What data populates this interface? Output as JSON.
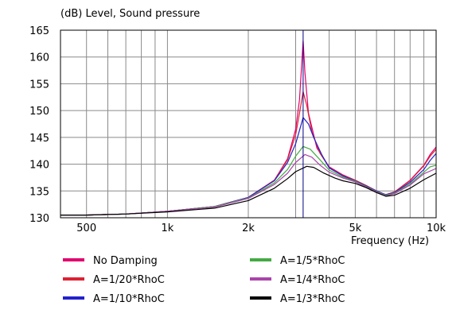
{
  "chart_data": {
    "type": "line",
    "title": "(dB)  Level, Sound pressure",
    "xlabel": "Frequency  (Hz)",
    "ylabel": "(dB)",
    "x_scale": "log",
    "xlim": [
      400,
      10000
    ],
    "ylim": [
      130,
      165
    ],
    "grid": true,
    "legend_placement": "bottom",
    "x_ticks": [
      {
        "value": 500,
        "label": "500"
      },
      {
        "value": 1000,
        "label": "1k"
      },
      {
        "value": 2000,
        "label": "2k"
      },
      {
        "value": 5000,
        "label": "5k"
      },
      {
        "value": 10000,
        "label": "10k"
      }
    ],
    "y_ticks": [
      {
        "value": 130,
        "label": "130"
      },
      {
        "value": 135,
        "label": "135"
      },
      {
        "value": 140,
        "label": "140"
      },
      {
        "value": 145,
        "label": "145"
      },
      {
        "value": 150,
        "label": "150"
      },
      {
        "value": 155,
        "label": "155"
      },
      {
        "value": 160,
        "label": "160"
      },
      {
        "value": 165,
        "label": "165"
      }
    ],
    "marker_line": {
      "x": 3200,
      "color": "#000080"
    },
    "series": [
      {
        "name": "No Damping",
        "color": "#e0006e",
        "points": [
          [
            400,
            130.5
          ],
          [
            500,
            130.5
          ],
          [
            700,
            130.7
          ],
          [
            1000,
            131.2
          ],
          [
            1500,
            132.1
          ],
          [
            2000,
            133.8
          ],
          [
            2500,
            137.0
          ],
          [
            2800,
            141.0
          ],
          [
            3000,
            146.5
          ],
          [
            3100,
            152.0
          ],
          [
            3150,
            157.5
          ],
          [
            3200,
            163.0
          ],
          [
            3250,
            157.0
          ],
          [
            3350,
            149.5
          ],
          [
            3600,
            143.0
          ],
          [
            4000,
            139.5
          ],
          [
            4500,
            138.0
          ],
          [
            5000,
            137.0
          ],
          [
            5500,
            136.0
          ],
          [
            6000,
            135.0
          ],
          [
            6500,
            134.3
          ],
          [
            7000,
            134.8
          ],
          [
            8000,
            137.0
          ],
          [
            9000,
            139.8
          ],
          [
            9500,
            141.8
          ],
          [
            10000,
            143.2
          ]
        ]
      },
      {
        "name": "A=1/20*RhoC",
        "color": "#dd2233",
        "points": [
          [
            400,
            130.5
          ],
          [
            500,
            130.5
          ],
          [
            700,
            130.7
          ],
          [
            1000,
            131.2
          ],
          [
            1500,
            132.1
          ],
          [
            2000,
            133.8
          ],
          [
            2500,
            137.0
          ],
          [
            2800,
            140.8
          ],
          [
            3000,
            145.5
          ],
          [
            3100,
            149.5
          ],
          [
            3200,
            153.5
          ],
          [
            3300,
            151.0
          ],
          [
            3450,
            146.0
          ],
          [
            3700,
            142.0
          ],
          [
            4000,
            139.4
          ],
          [
            4500,
            137.9
          ],
          [
            5000,
            137.0
          ],
          [
            5500,
            136.0
          ],
          [
            6000,
            135.0
          ],
          [
            6500,
            134.3
          ],
          [
            7000,
            134.8
          ],
          [
            8000,
            136.9
          ],
          [
            9000,
            139.7
          ],
          [
            9500,
            141.5
          ],
          [
            10000,
            142.8
          ]
        ]
      },
      {
        "name": "A=1/10*RhoC",
        "color": "#2222cc",
        "points": [
          [
            400,
            130.5
          ],
          [
            500,
            130.5
          ],
          [
            700,
            130.7
          ],
          [
            1000,
            131.2
          ],
          [
            1500,
            132.1
          ],
          [
            2000,
            133.8
          ],
          [
            2500,
            136.9
          ],
          [
            2800,
            140.3
          ],
          [
            3000,
            143.8
          ],
          [
            3200,
            148.7
          ],
          [
            3350,
            147.5
          ],
          [
            3500,
            145.0
          ],
          [
            3750,
            141.8
          ],
          [
            4000,
            139.3
          ],
          [
            4500,
            137.8
          ],
          [
            5000,
            136.9
          ],
          [
            5500,
            135.9
          ],
          [
            6000,
            135.0
          ],
          [
            6500,
            134.3
          ],
          [
            7000,
            134.7
          ],
          [
            8000,
            136.6
          ],
          [
            9000,
            139.0
          ],
          [
            9500,
            140.7
          ],
          [
            10000,
            142.0
          ]
        ]
      },
      {
        "name": "A=1/5*RhoC",
        "color": "#44aa44",
        "points": [
          [
            400,
            130.5
          ],
          [
            500,
            130.5
          ],
          [
            700,
            130.7
          ],
          [
            1000,
            131.2
          ],
          [
            1500,
            132.1
          ],
          [
            2000,
            133.7
          ],
          [
            2500,
            136.5
          ],
          [
            2800,
            139.0
          ],
          [
            3000,
            141.5
          ],
          [
            3200,
            143.3
          ],
          [
            3400,
            142.8
          ],
          [
            3700,
            140.8
          ],
          [
            4000,
            138.9
          ],
          [
            4500,
            137.6
          ],
          [
            5000,
            136.8
          ],
          [
            5500,
            135.8
          ],
          [
            6000,
            134.9
          ],
          [
            6500,
            134.2
          ],
          [
            7000,
            134.6
          ],
          [
            8000,
            136.3
          ],
          [
            9000,
            138.5
          ],
          [
            9500,
            139.5
          ],
          [
            10000,
            139.8
          ]
        ]
      },
      {
        "name": "A=1/4*RhoC",
        "color": "#aa44aa",
        "points": [
          [
            400,
            130.5
          ],
          [
            500,
            130.5
          ],
          [
            700,
            130.7
          ],
          [
            1000,
            131.2
          ],
          [
            1500,
            132.0
          ],
          [
            2000,
            133.6
          ],
          [
            2500,
            136.2
          ],
          [
            2800,
            138.3
          ],
          [
            3000,
            140.3
          ],
          [
            3250,
            141.8
          ],
          [
            3450,
            141.3
          ],
          [
            3700,
            139.8
          ],
          [
            4000,
            138.5
          ],
          [
            4500,
            137.4
          ],
          [
            5000,
            136.7
          ],
          [
            5500,
            135.7
          ],
          [
            6000,
            134.8
          ],
          [
            6500,
            134.1
          ],
          [
            7000,
            134.5
          ],
          [
            8000,
            136.1
          ],
          [
            9000,
            138.2
          ],
          [
            10000,
            139.2
          ]
        ]
      },
      {
        "name": "A=1/3*RhoC",
        "color": "#000000",
        "points": [
          [
            400,
            130.5
          ],
          [
            500,
            130.5
          ],
          [
            700,
            130.7
          ],
          [
            1000,
            131.1
          ],
          [
            1500,
            131.8
          ],
          [
            2000,
            133.2
          ],
          [
            2500,
            135.5
          ],
          [
            2800,
            137.3
          ],
          [
            3000,
            138.6
          ],
          [
            3300,
            139.6
          ],
          [
            3500,
            139.4
          ],
          [
            3800,
            138.4
          ],
          [
            4200,
            137.4
          ],
          [
            4500,
            136.9
          ],
          [
            5000,
            136.4
          ],
          [
            5500,
            135.6
          ],
          [
            6000,
            134.7
          ],
          [
            6500,
            134.0
          ],
          [
            7000,
            134.2
          ],
          [
            8000,
            135.5
          ],
          [
            9000,
            137.1
          ],
          [
            10000,
            138.3
          ]
        ]
      }
    ]
  }
}
